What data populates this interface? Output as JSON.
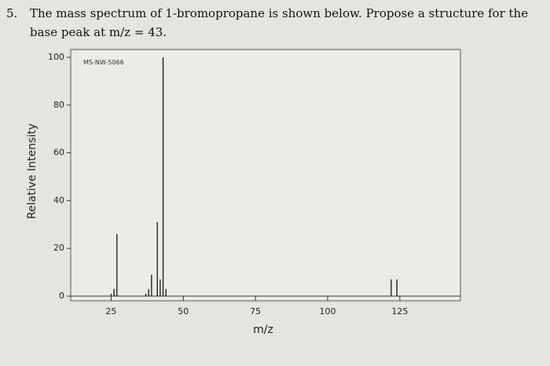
{
  "question": {
    "number": "5.",
    "lines": [
      "The mass spectrum of 1-bromopropane is shown below. Propose a structure for the",
      "base peak at m/z = 43."
    ]
  },
  "chart_data": {
    "type": "stick",
    "annotation": "MS-NW-5066",
    "x_label": "m/z",
    "y_label": "Relative Intensity",
    "x": [
      25,
      26,
      27,
      37,
      38,
      39,
      41,
      42,
      43,
      44,
      122,
      124
    ],
    "values": [
      1,
      3,
      26,
      1,
      3,
      9,
      31,
      7,
      100,
      3,
      7,
      7
    ],
    "color": "#222222",
    "xlim": [
      11,
      146
    ],
    "ylim": [
      0,
      100
    ],
    "xticks": [
      25,
      50,
      75,
      100,
      125
    ],
    "yticks": [
      0,
      20,
      40,
      60,
      80,
      100
    ]
  }
}
